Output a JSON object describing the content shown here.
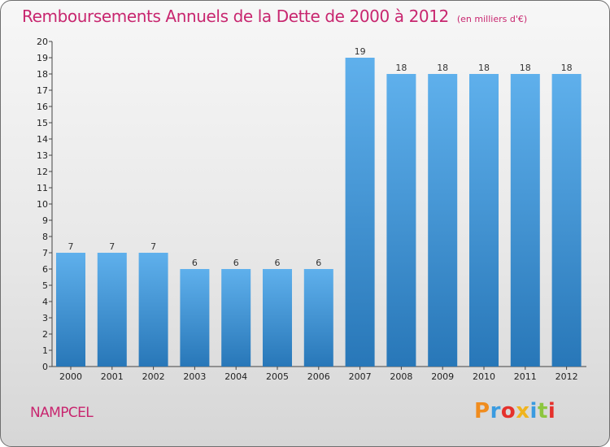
{
  "header": {
    "title": "Remboursements Annuels de la Dette de 2000 à 2012",
    "unit": "(en milliers d'€)"
  },
  "footer": {
    "commune": "NAMPCEL",
    "logo_text": "Proxiti",
    "logo_colors": [
      "#f08c1e",
      "#3a9be0",
      "#e5312c",
      "#f0b41e",
      "#3a9be0",
      "#8cc63f",
      "#e5312c"
    ]
  },
  "colors": {
    "bar_top": "#5fb0ec",
    "bar_bottom": "#2877b8",
    "axis": "#444444",
    "title": "#c8266f"
  },
  "chart_data": {
    "type": "bar",
    "title": "Remboursements Annuels de la Dette de 2000 à 2012",
    "subtitle": "(en milliers d'€)",
    "xlabel": "",
    "ylabel": "",
    "categories": [
      "2000",
      "2001",
      "2002",
      "2003",
      "2004",
      "2005",
      "2006",
      "2007",
      "2008",
      "2009",
      "2010",
      "2011",
      "2012"
    ],
    "values": [
      7,
      7,
      7,
      6,
      6,
      6,
      6,
      19,
      18,
      18,
      18,
      18,
      18
    ],
    "data_labels": [
      "7",
      "7",
      "7",
      "6",
      "6",
      "6",
      "6",
      "19",
      "18",
      "18",
      "18",
      "18",
      "18"
    ],
    "ylim": [
      0,
      20
    ],
    "yticks": [
      0,
      1,
      2,
      3,
      4,
      5,
      6,
      7,
      8,
      9,
      10,
      11,
      12,
      13,
      14,
      15,
      16,
      17,
      18,
      19,
      20
    ],
    "grid": false,
    "legend": "none"
  }
}
